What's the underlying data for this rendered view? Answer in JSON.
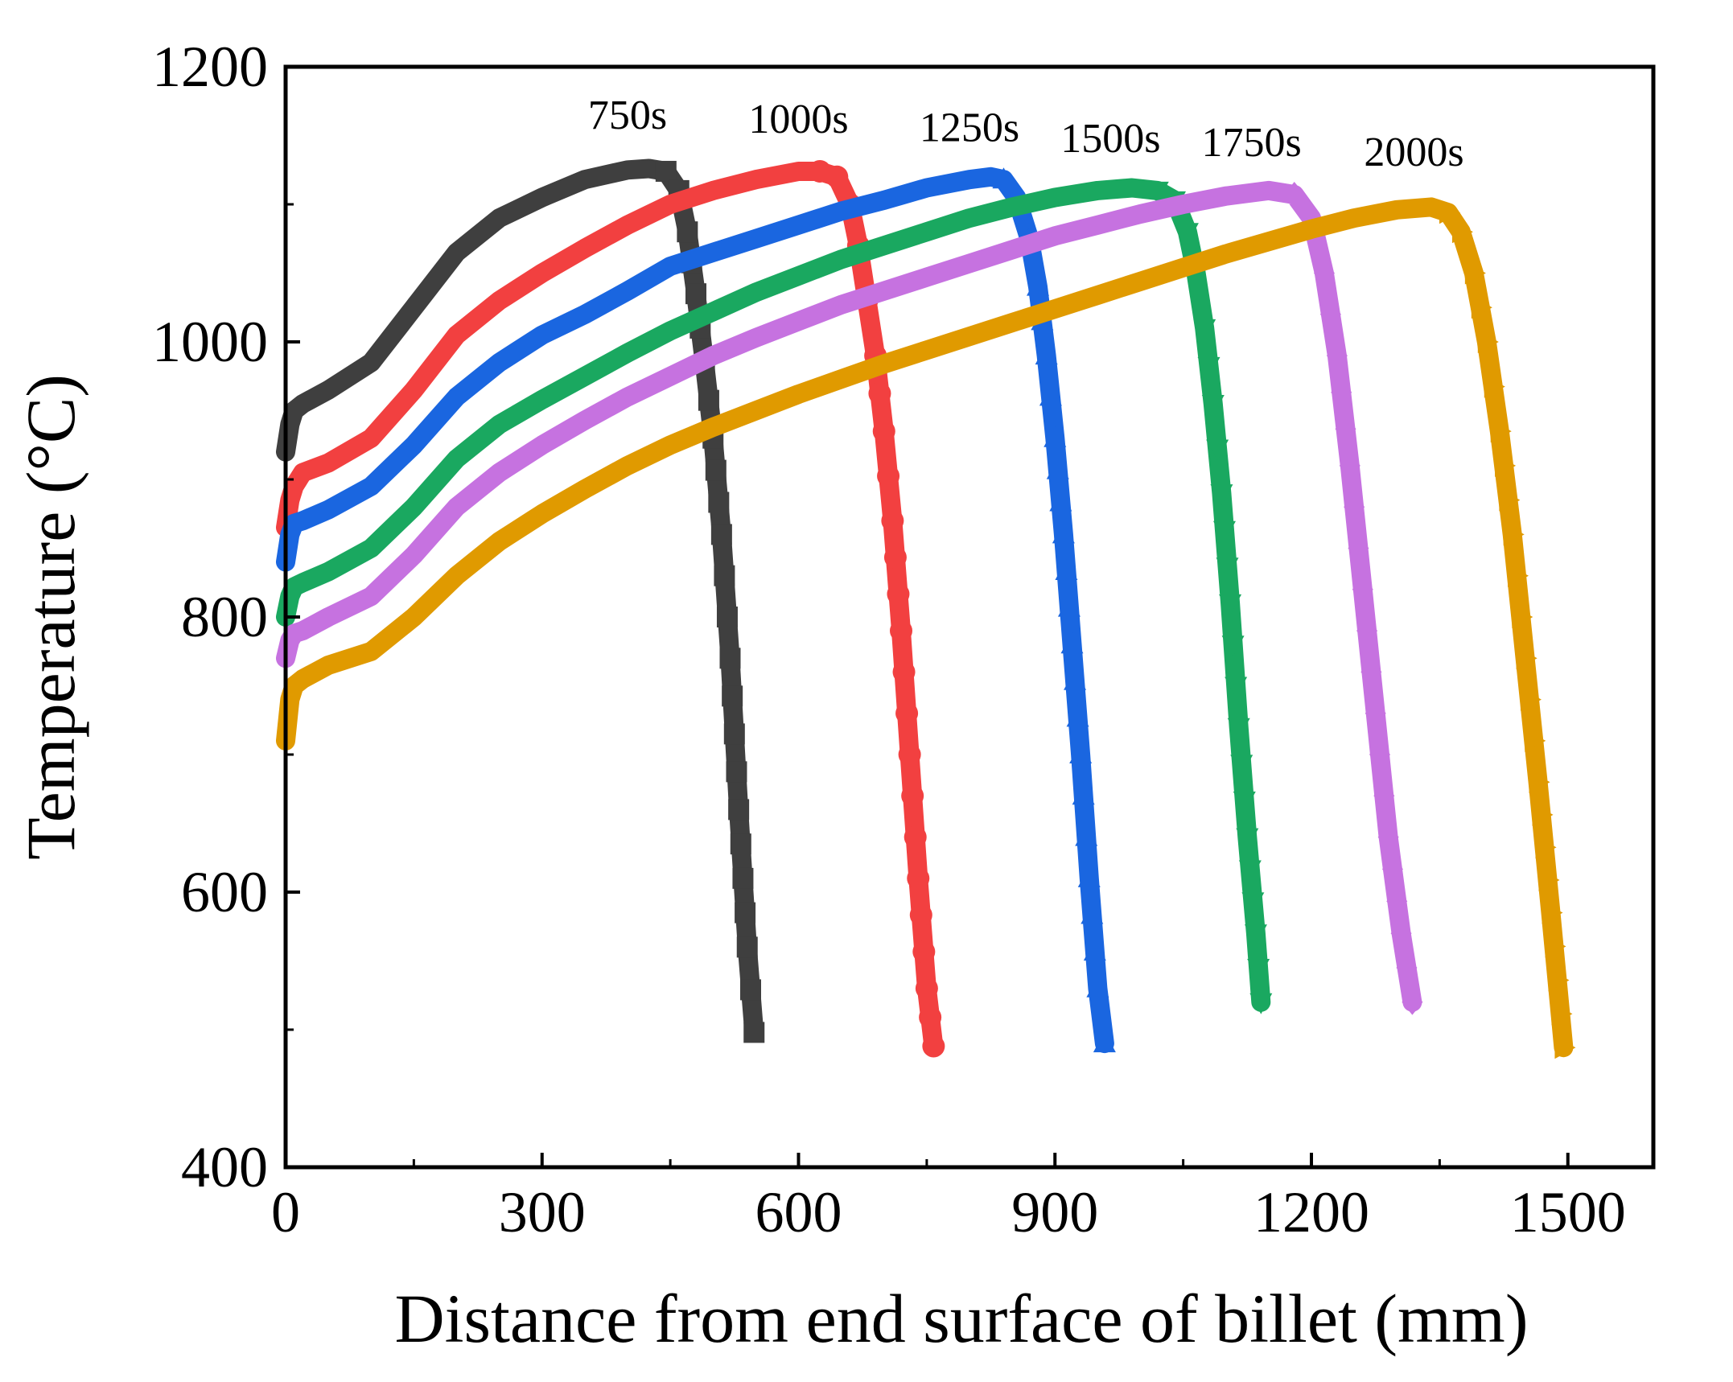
{
  "chart_data": {
    "type": "line",
    "title": "",
    "xlabel": "Distance from end surface of billet (mm)",
    "ylabel": "Temperature (°C)",
    "xlim": [
      0,
      1600
    ],
    "ylim": [
      400,
      1200
    ],
    "xticks": [
      0,
      300,
      600,
      900,
      1200,
      1500
    ],
    "xtick_labels": [
      "0",
      "300",
      "600",
      "900",
      "1200",
      "1500"
    ],
    "yticks": [
      400,
      600,
      800,
      1000,
      1200
    ],
    "ytick_labels": [
      "400",
      "600",
      "800",
      "1000",
      "1200"
    ],
    "x_minor_ticks": [
      150,
      450,
      750,
      1050,
      1350
    ],
    "y_minor_ticks": [
      500,
      700,
      900,
      1100
    ],
    "series": [
      {
        "name": "750s",
        "label": "750s",
        "color": "#3f3f3f",
        "marker": "square",
        "label_at": [
          400,
          1155
        ],
        "x": [
          0,
          5,
          10,
          20,
          50,
          100,
          150,
          200,
          250,
          300,
          350,
          400,
          425,
          445,
          460,
          470,
          480,
          490,
          500,
          510,
          520,
          530,
          540,
          548
        ],
        "y": [
          920,
          940,
          950,
          955,
          965,
          985,
          1025,
          1065,
          1090,
          1105,
          1118,
          1125,
          1126,
          1124,
          1110,
          1080,
          1035,
          985,
          930,
          860,
          770,
          660,
          560,
          498
        ]
      },
      {
        "name": "1000s",
        "label": "1000s",
        "color": "#f24040",
        "marker": "circle",
        "label_at": [
          600,
          1152
        ],
        "x": [
          0,
          5,
          10,
          20,
          50,
          100,
          150,
          200,
          250,
          300,
          350,
          400,
          450,
          500,
          550,
          600,
          625,
          645,
          660,
          670,
          680,
          690,
          700,
          710,
          720,
          730,
          740,
          750,
          758
        ],
        "y": [
          865,
          885,
          895,
          905,
          912,
          930,
          965,
          1005,
          1030,
          1050,
          1068,
          1085,
          1100,
          1110,
          1118,
          1124,
          1124,
          1120,
          1100,
          1070,
          1030,
          990,
          935,
          870,
          790,
          700,
          610,
          530,
          488
        ]
      },
      {
        "name": "1250s",
        "label": "1250s",
        "color": "#1a66e0",
        "marker": "triangle-up",
        "label_at": [
          800,
          1146
        ],
        "x": [
          0,
          5,
          10,
          20,
          50,
          100,
          150,
          200,
          250,
          300,
          350,
          400,
          450,
          500,
          550,
          600,
          650,
          700,
          750,
          800,
          825,
          840,
          855,
          870,
          880,
          890,
          900,
          910,
          920,
          930,
          940,
          950,
          958
        ],
        "y": [
          840,
          860,
          868,
          870,
          878,
          895,
          925,
          960,
          985,
          1005,
          1020,
          1037,
          1055,
          1065,
          1075,
          1085,
          1095,
          1103,
          1112,
          1118,
          1120,
          1118,
          1105,
          1075,
          1040,
          990,
          930,
          860,
          780,
          700,
          610,
          530,
          490
        ]
      },
      {
        "name": "1500s",
        "label": "1500s",
        "color": "#1aa860",
        "marker": "triangle-down",
        "label_at": [
          965,
          1138
        ],
        "x": [
          0,
          5,
          10,
          20,
          50,
          100,
          150,
          200,
          250,
          300,
          350,
          400,
          450,
          500,
          550,
          600,
          650,
          700,
          750,
          800,
          850,
          900,
          950,
          990,
          1020,
          1040,
          1055,
          1065,
          1075,
          1085,
          1095,
          1105,
          1115,
          1125,
          1135,
          1141
        ],
        "y": [
          800,
          815,
          822,
          825,
          833,
          850,
          880,
          915,
          940,
          958,
          975,
          992,
          1008,
          1022,
          1036,
          1048,
          1060,
          1070,
          1080,
          1090,
          1098,
          1105,
          1110,
          1112,
          1110,
          1103,
          1080,
          1050,
          1010,
          955,
          890,
          810,
          720,
          640,
          570,
          520
        ]
      },
      {
        "name": "1750s",
        "label": "1750s",
        "color": "#c672e0",
        "marker": "diamond",
        "label_at": [
          1130,
          1135
        ],
        "x": [
          0,
          5,
          10,
          20,
          50,
          100,
          150,
          200,
          250,
          300,
          350,
          400,
          450,
          500,
          550,
          600,
          650,
          700,
          750,
          800,
          850,
          900,
          950,
          1000,
          1050,
          1100,
          1150,
          1180,
          1200,
          1215,
          1230,
          1245,
          1260,
          1275,
          1290,
          1305,
          1318
        ],
        "y": [
          770,
          783,
          788,
          790,
          800,
          815,
          845,
          880,
          905,
          925,
          943,
          960,
          975,
          990,
          1003,
          1015,
          1027,
          1037,
          1047,
          1057,
          1067,
          1077,
          1085,
          1093,
          1100,
          1106,
          1110,
          1107,
          1090,
          1050,
          990,
          910,
          820,
          730,
          640,
          570,
          520
        ]
      },
      {
        "name": "2000s",
        "label": "2000s",
        "color": "#e09a00",
        "marker": "triangle-right",
        "label_at": [
          1320,
          1128
        ],
        "x": [
          0,
          5,
          10,
          20,
          50,
          100,
          150,
          200,
          250,
          300,
          350,
          400,
          450,
          500,
          550,
          600,
          650,
          700,
          750,
          800,
          850,
          900,
          950,
          1000,
          1050,
          1100,
          1150,
          1200,
          1250,
          1300,
          1340,
          1360,
          1375,
          1390,
          1405,
          1420,
          1435,
          1450,
          1465,
          1480,
          1495
        ],
        "y": [
          710,
          740,
          750,
          755,
          765,
          775,
          800,
          830,
          855,
          875,
          893,
          910,
          925,
          938,
          950,
          962,
          973,
          984,
          994,
          1004,
          1014,
          1024,
          1034,
          1044,
          1054,
          1064,
          1073,
          1082,
          1090,
          1096,
          1098,
          1094,
          1080,
          1050,
          1000,
          935,
          860,
          770,
          680,
          585,
          487
        ]
      }
    ]
  }
}
